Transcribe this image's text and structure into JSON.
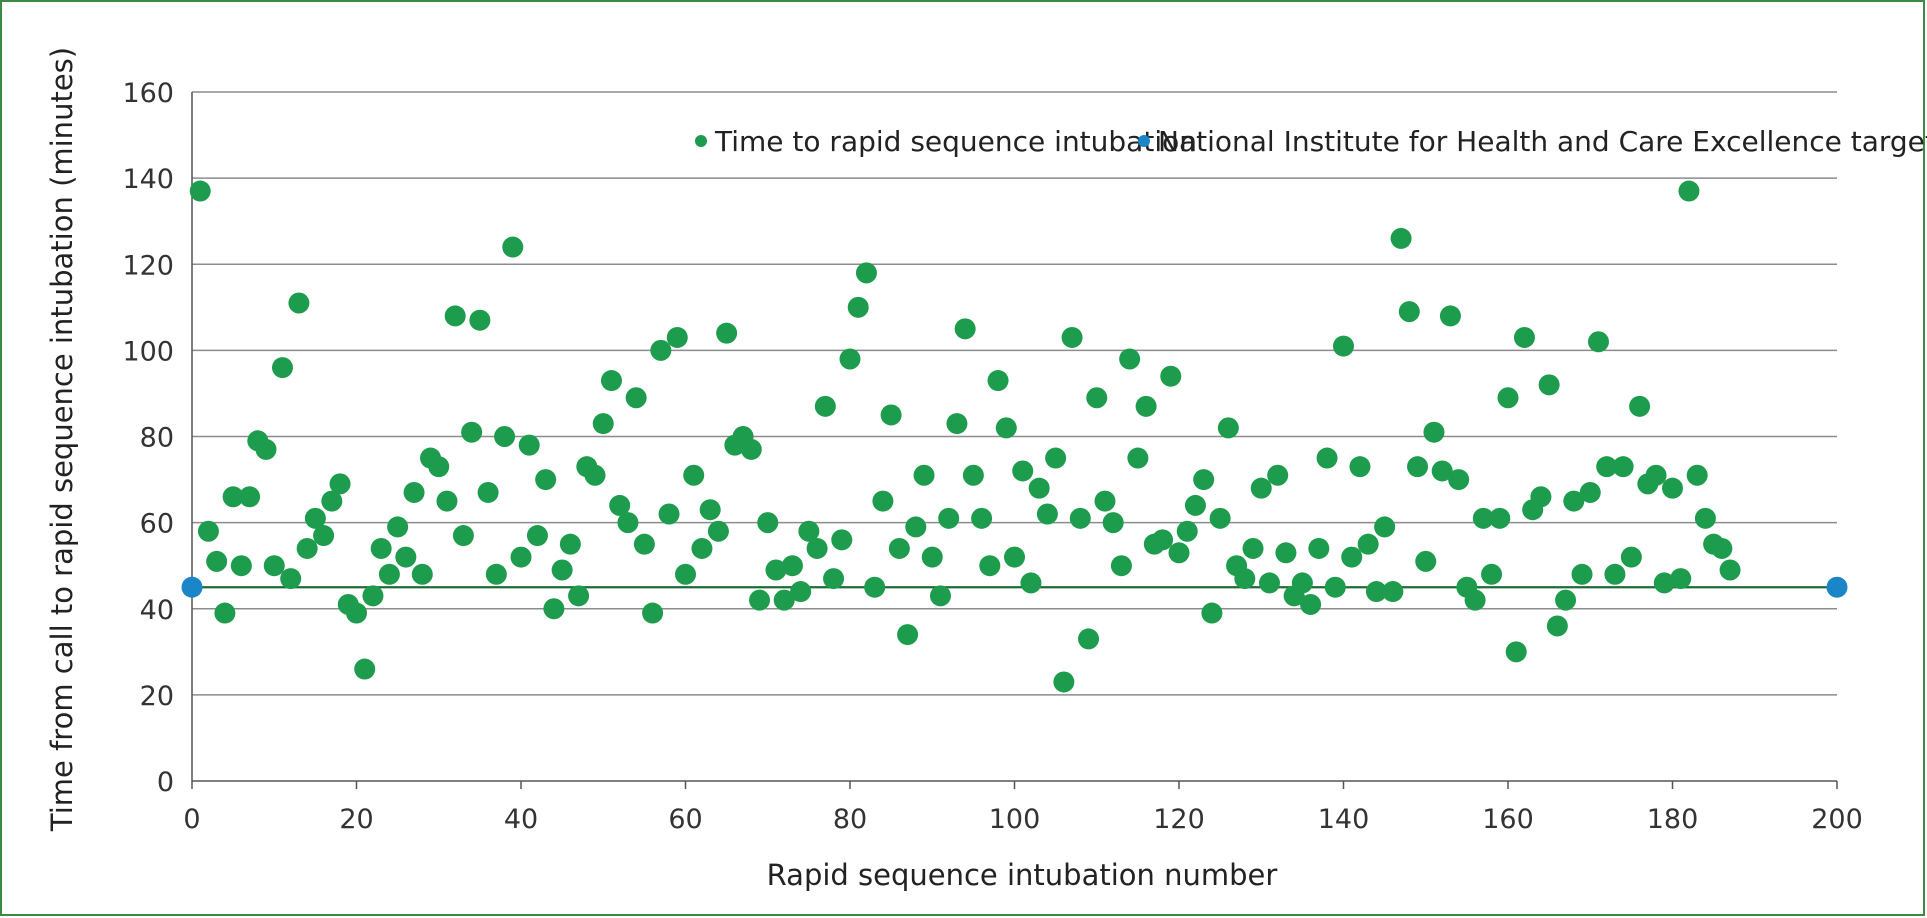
{
  "chart_data": {
    "type": "scatter",
    "xlabel": "Rapid sequence intubation number",
    "ylabel": "Time from call to rapid sequence intubation (minutes)",
    "xlim": [
      0,
      200
    ],
    "ylim": [
      0,
      160
    ],
    "xticks": [
      0,
      20,
      40,
      60,
      80,
      100,
      120,
      140,
      160,
      180,
      200
    ],
    "yticks": [
      0,
      20,
      40,
      60,
      80,
      100,
      120,
      140,
      160
    ],
    "grid": "horizontal",
    "legend_position": "top-right",
    "series": [
      {
        "name": "Time to rapid sequence intubation",
        "color": "#1e9c4e",
        "points": [
          [
            1,
            137
          ],
          [
            2,
            58
          ],
          [
            3,
            51
          ],
          [
            4,
            39
          ],
          [
            5,
            66
          ],
          [
            6,
            50
          ],
          [
            7,
            66
          ],
          [
            8,
            79
          ],
          [
            9,
            77
          ],
          [
            10,
            50
          ],
          [
            11,
            96
          ],
          [
            12,
            47
          ],
          [
            13,
            111
          ],
          [
            14,
            54
          ],
          [
            15,
            61
          ],
          [
            16,
            57
          ],
          [
            17,
            65
          ],
          [
            18,
            69
          ],
          [
            19,
            41
          ],
          [
            20,
            39
          ],
          [
            21,
            26
          ],
          [
            22,
            43
          ],
          [
            23,
            54
          ],
          [
            24,
            48
          ],
          [
            25,
            59
          ],
          [
            26,
            52
          ],
          [
            27,
            67
          ],
          [
            28,
            48
          ],
          [
            29,
            75
          ],
          [
            30,
            73
          ],
          [
            31,
            65
          ],
          [
            32,
            108
          ],
          [
            33,
            57
          ],
          [
            34,
            81
          ],
          [
            35,
            107
          ],
          [
            36,
            67
          ],
          [
            37,
            48
          ],
          [
            38,
            80
          ],
          [
            39,
            124
          ],
          [
            40,
            52
          ],
          [
            41,
            78
          ],
          [
            42,
            57
          ],
          [
            43,
            70
          ],
          [
            44,
            40
          ],
          [
            45,
            49
          ],
          [
            46,
            55
          ],
          [
            47,
            43
          ],
          [
            48,
            73
          ],
          [
            49,
            71
          ],
          [
            50,
            83
          ],
          [
            51,
            93
          ],
          [
            52,
            64
          ],
          [
            53,
            60
          ],
          [
            54,
            89
          ],
          [
            55,
            55
          ],
          [
            56,
            39
          ],
          [
            57,
            100
          ],
          [
            58,
            62
          ],
          [
            59,
            103
          ],
          [
            60,
            48
          ],
          [
            61,
            71
          ],
          [
            62,
            54
          ],
          [
            63,
            63
          ],
          [
            64,
            58
          ],
          [
            65,
            104
          ],
          [
            66,
            78
          ],
          [
            67,
            80
          ],
          [
            68,
            77
          ],
          [
            69,
            42
          ],
          [
            70,
            60
          ],
          [
            71,
            49
          ],
          [
            72,
            42
          ],
          [
            73,
            50
          ],
          [
            74,
            44
          ],
          [
            75,
            58
          ],
          [
            76,
            54
          ],
          [
            77,
            87
          ],
          [
            78,
            47
          ],
          [
            79,
            56
          ],
          [
            80,
            98
          ],
          [
            81,
            110
          ],
          [
            82,
            118
          ],
          [
            83,
            45
          ],
          [
            84,
            65
          ],
          [
            85,
            85
          ],
          [
            86,
            54
          ],
          [
            87,
            34
          ],
          [
            88,
            59
          ],
          [
            89,
            71
          ],
          [
            90,
            52
          ],
          [
            91,
            43
          ],
          [
            92,
            61
          ],
          [
            93,
            83
          ],
          [
            94,
            105
          ],
          [
            95,
            71
          ],
          [
            96,
            61
          ],
          [
            97,
            50
          ],
          [
            98,
            93
          ],
          [
            99,
            82
          ],
          [
            100,
            52
          ],
          [
            101,
            72
          ],
          [
            102,
            46
          ],
          [
            103,
            68
          ],
          [
            104,
            62
          ],
          [
            105,
            75
          ],
          [
            106,
            23
          ],
          [
            107,
            103
          ],
          [
            108,
            61
          ],
          [
            109,
            33
          ],
          [
            110,
            89
          ],
          [
            111,
            65
          ],
          [
            112,
            60
          ],
          [
            113,
            50
          ],
          [
            114,
            98
          ],
          [
            115,
            75
          ],
          [
            116,
            87
          ],
          [
            117,
            55
          ],
          [
            118,
            56
          ],
          [
            119,
            94
          ],
          [
            120,
            53
          ],
          [
            121,
            58
          ],
          [
            122,
            64
          ],
          [
            123,
            70
          ],
          [
            124,
            39
          ],
          [
            125,
            61
          ],
          [
            126,
            82
          ],
          [
            127,
            50
          ],
          [
            128,
            47
          ],
          [
            129,
            54
          ],
          [
            130,
            68
          ],
          [
            131,
            46
          ],
          [
            132,
            71
          ],
          [
            133,
            53
          ],
          [
            134,
            43
          ],
          [
            135,
            46
          ],
          [
            136,
            41
          ],
          [
            137,
            54
          ],
          [
            138,
            75
          ],
          [
            139,
            45
          ],
          [
            140,
            101
          ],
          [
            141,
            52
          ],
          [
            142,
            73
          ],
          [
            143,
            55
          ],
          [
            144,
            44
          ],
          [
            145,
            59
          ],
          [
            146,
            44
          ],
          [
            147,
            126
          ],
          [
            148,
            109
          ],
          [
            149,
            73
          ],
          [
            150,
            51
          ],
          [
            151,
            81
          ],
          [
            152,
            72
          ],
          [
            153,
            108
          ],
          [
            154,
            70
          ],
          [
            155,
            45
          ],
          [
            156,
            42
          ],
          [
            157,
            61
          ],
          [
            158,
            48
          ],
          [
            159,
            61
          ],
          [
            160,
            89
          ],
          [
            161,
            30
          ],
          [
            162,
            103
          ],
          [
            163,
            63
          ],
          [
            164,
            66
          ],
          [
            165,
            92
          ],
          [
            166,
            36
          ],
          [
            167,
            42
          ],
          [
            168,
            65
          ],
          [
            169,
            48
          ],
          [
            170,
            67
          ],
          [
            171,
            102
          ],
          [
            172,
            73
          ],
          [
            173,
            48
          ],
          [
            174,
            73
          ],
          [
            175,
            52
          ],
          [
            176,
            87
          ],
          [
            177,
            69
          ],
          [
            178,
            71
          ],
          [
            179,
            46
          ],
          [
            180,
            68
          ],
          [
            181,
            47
          ],
          [
            182,
            137
          ],
          [
            183,
            71
          ],
          [
            184,
            61
          ],
          [
            185,
            55
          ],
          [
            186,
            54
          ],
          [
            187,
            49
          ]
        ]
      },
      {
        "name": "National Institute for Health and Care Excellence target",
        "color": "#1a86c8",
        "line_color": "#1f6b35",
        "points": [
          [
            0,
            45
          ],
          [
            200,
            45
          ]
        ]
      }
    ]
  }
}
